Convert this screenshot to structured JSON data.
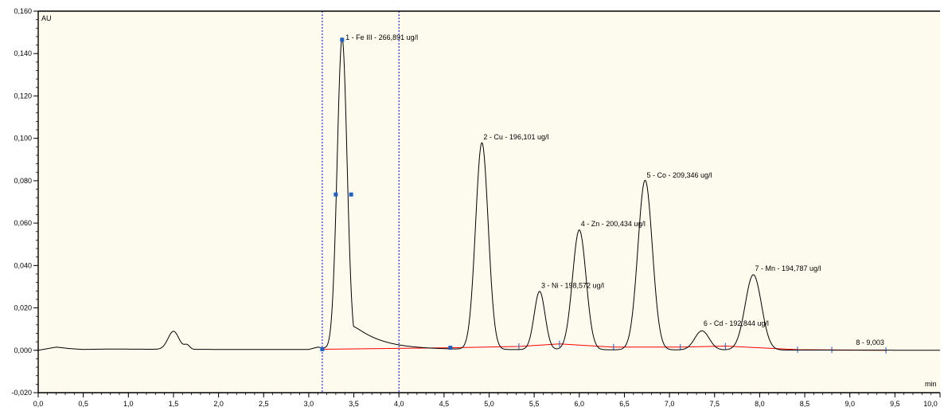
{
  "chart_data": {
    "type": "line",
    "y_unit": "AU",
    "x_unit": "min",
    "xlim": [
      0.0,
      10.0
    ],
    "ylim": [
      -0.02,
      0.16
    ],
    "x_ticks": [
      "0,0",
      "0,5",
      "1,0",
      "1,5",
      "2,0",
      "2,5",
      "3,0",
      "3,5",
      "4,0",
      "4,5",
      "5,0",
      "5,5",
      "6,0",
      "6,5",
      "7,0",
      "7,5",
      "8,0",
      "8,5",
      "9,0",
      "9,5",
      "10,0"
    ],
    "y_ticks": [
      "-0,020",
      "0,000",
      "0,020",
      "0,040",
      "0,060",
      "0,080",
      "0,100",
      "0,120",
      "0,140",
      "0,160"
    ],
    "grid": false,
    "colors": {
      "plot_background": "#fdfbee",
      "trace": "#000000",
      "baseline": "#ff0000",
      "marker": "#1f5fbf",
      "cursor": "#0000cc"
    },
    "cursor_lines_x": [
      3.15,
      4.0
    ],
    "signal": {
      "base_points": [
        [
          0.0,
          0.0
        ],
        [
          0.2,
          0.0015
        ],
        [
          0.35,
          0.0008
        ],
        [
          0.5,
          0.0004
        ],
        [
          0.8,
          0.0006
        ],
        [
          1.2,
          0.0005
        ],
        [
          2.0,
          0.0004
        ],
        [
          2.5,
          0.0004
        ],
        [
          3.0,
          0.0004
        ],
        [
          3.1,
          0.0015
        ],
        [
          3.2,
          0.0008
        ],
        [
          4.0,
          0.0004
        ],
        [
          10.0,
          0.0
        ]
      ],
      "peaks": [
        {
          "center": 1.5,
          "height": 0.0085,
          "width": 0.06
        },
        {
          "center": 1.65,
          "height": 0.002,
          "width": 0.03
        },
        {
          "center": 3.37,
          "height": 0.1465,
          "width": 0.055,
          "tail": 0.3
        },
        {
          "center": 4.92,
          "height": 0.0975,
          "width": 0.07
        },
        {
          "center": 5.56,
          "height": 0.0275,
          "width": 0.06
        },
        {
          "center": 6.0,
          "height": 0.0565,
          "width": 0.075
        },
        {
          "center": 6.73,
          "height": 0.08,
          "width": 0.08
        },
        {
          "center": 7.36,
          "height": 0.009,
          "width": 0.08
        },
        {
          "center": 7.93,
          "height": 0.0355,
          "width": 0.09
        }
      ]
    },
    "baseline_points": [
      [
        3.15,
        0.0005
      ],
      [
        4.57,
        0.0012
      ],
      [
        5.33,
        0.0018
      ],
      [
        5.78,
        0.003
      ],
      [
        6.38,
        0.0015
      ],
      [
        7.12,
        0.0015
      ],
      [
        7.62,
        0.002
      ],
      [
        8.42,
        0.0003
      ],
      [
        9.4,
        0.0
      ]
    ],
    "baseline_ticks_x": [
      5.33,
      5.78,
      6.38,
      7.12,
      7.62,
      8.42,
      8.8,
      9.4
    ],
    "markers": [
      {
        "x": 3.15,
        "y": 0.0005
      },
      {
        "x": 3.3,
        "y": 0.0735
      },
      {
        "x": 3.37,
        "y": 0.1465
      },
      {
        "x": 3.47,
        "y": 0.0735
      },
      {
        "x": 4.57,
        "y": 0.0012
      }
    ],
    "peak_labels": [
      {
        "x": 3.39,
        "y": 0.1465,
        "text": "1 - Fe III - 266,891 ug/l"
      },
      {
        "x": 4.92,
        "y": 0.0995,
        "text": "2 - Cu - 196,101 ug/l"
      },
      {
        "x": 5.56,
        "y": 0.0295,
        "text": "3 - Ni - 198,572 ug/l"
      },
      {
        "x": 6.0,
        "y": 0.0585,
        "text": "4 - Zn - 200,434 ug/l"
      },
      {
        "x": 6.73,
        "y": 0.0815,
        "text": "5 - Co - 209,346 ug/l"
      },
      {
        "x": 7.36,
        "y": 0.0115,
        "text": "6 - Cd - 192,844 ug/l"
      },
      {
        "x": 7.93,
        "y": 0.0375,
        "text": "7 - Mn - 194,787 ug/l"
      },
      {
        "x": 9.05,
        "y": 0.0025,
        "text": "8 - 9,003"
      }
    ]
  }
}
